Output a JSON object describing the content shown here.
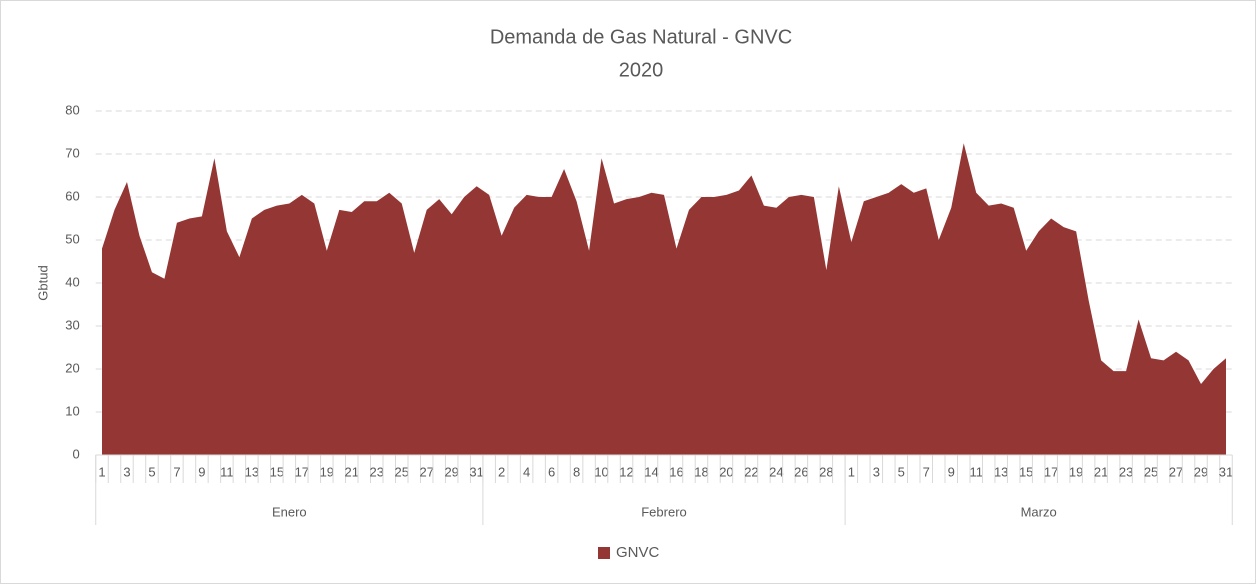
{
  "chart_data": {
    "type": "area",
    "title": "Demanda de Gas Natural - GNVC",
    "subtitle": "2020",
    "y_label": "Gbtud",
    "categories": [
      "1",
      null,
      "3",
      null,
      "5",
      null,
      "7",
      null,
      "9",
      null,
      "11",
      null,
      "13",
      null,
      "15",
      null,
      "17",
      null,
      "19",
      null,
      "21",
      null,
      "23",
      null,
      "25",
      null,
      "27",
      null,
      "29",
      null,
      "31",
      null,
      "2",
      null,
      "4",
      null,
      "6",
      null,
      "8",
      null,
      "10",
      null,
      "12",
      null,
      "14",
      null,
      "16",
      null,
      "18",
      null,
      "20",
      null,
      "22",
      null,
      "24",
      null,
      "26",
      null,
      "28",
      null,
      "1",
      null,
      "3",
      null,
      "5",
      null,
      "7",
      null,
      "9",
      null,
      "11",
      null,
      "13",
      null,
      "15",
      null,
      "17",
      null,
      "19",
      null,
      "21",
      null,
      "23",
      null,
      "25",
      null,
      "27",
      null,
      "29",
      null,
      "31"
    ],
    "groups": [
      {
        "label": "Enero",
        "count": 31
      },
      {
        "label": "Febrero",
        "count": 29
      },
      {
        "label": "Marzo",
        "count": 31
      }
    ],
    "series": [
      {
        "name": "GNVC",
        "color": "#943634",
        "values": [
          48,
          57,
          63.5,
          51,
          42.5,
          41,
          54,
          55,
          55.5,
          69,
          52,
          46,
          55,
          57,
          58,
          58.5,
          60.5,
          58.5,
          47.5,
          57,
          56.5,
          59,
          59,
          61,
          58.5,
          47,
          57,
          59.5,
          56,
          60,
          62.5,
          60.5,
          51,
          57.5,
          60.5,
          60,
          60,
          66.5,
          59,
          47.5,
          69,
          58.5,
          59.5,
          60,
          61,
          60.5,
          48,
          57,
          60,
          60,
          60.5,
          61.5,
          65,
          58,
          57.5,
          60,
          60.5,
          60,
          43,
          62.5,
          49.5,
          59,
          60,
          61,
          63,
          61,
          62,
          50,
          57.5,
          72.5,
          61,
          58,
          58.5,
          57.5,
          47.5,
          52,
          55,
          53,
          52,
          36,
          22,
          19.5,
          19.5,
          31.5,
          22.5,
          22,
          24,
          22,
          16.5,
          20,
          22.5
        ]
      }
    ],
    "ylim": [
      0,
      80
    ],
    "yticks": [
      0,
      10,
      20,
      30,
      40,
      50,
      60,
      70,
      80
    ],
    "grid": true,
    "legend": "bottom"
  }
}
